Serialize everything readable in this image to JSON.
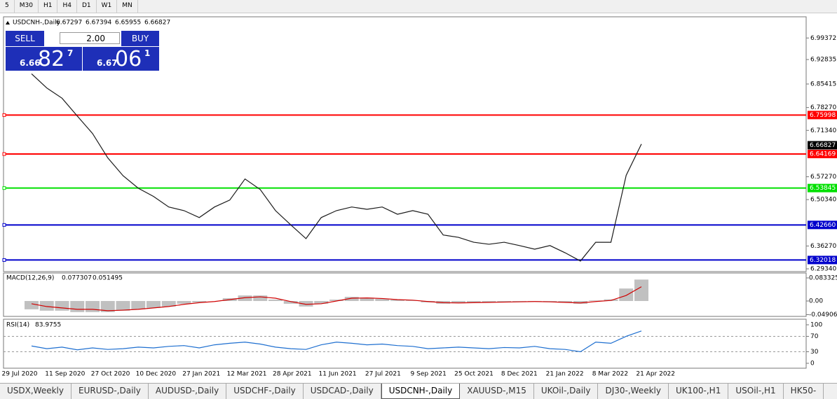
{
  "toolbar": {
    "timeframes": [
      "5",
      "M30",
      "H1",
      "H4",
      "D1",
      "W1",
      "MN"
    ]
  },
  "trade_panel": {
    "sell": "SELL",
    "buy": "BUY",
    "lot": "2.00",
    "sell_price": [
      "6.66",
      "82",
      "7"
    ],
    "buy_price": [
      "6.67",
      "06",
      "1"
    ]
  },
  "chart_data": {
    "type": "line",
    "symbol": "USDCNH-,Daily",
    "ohlc": [
      6.67297,
      6.67394,
      6.65955,
      6.66827
    ],
    "x_labels": [
      "29 Jul 2020",
      "11 Sep 2020",
      "27 Oct 2020",
      "10 Dec 2020",
      "27 Jan 2021",
      "12 Mar 2021",
      "28 Apr 2021",
      "11 Jun 2021",
      "27 Jul 2021",
      "9 Sep 2021",
      "25 Oct 2021",
      "8 Dec 2021",
      "21 Jan 2022",
      "8 Mar 2022",
      "21 Apr 2022"
    ],
    "series": [
      {
        "color": "#1a1a1a",
        "values": [
          6.885,
          6.842,
          6.811,
          6.757,
          6.704,
          6.63,
          6.576,
          6.538,
          6.513,
          6.481,
          6.47,
          6.449,
          6.481,
          6.502,
          6.566,
          6.534,
          6.47,
          6.427,
          6.385,
          6.449,
          6.47,
          6.481,
          6.474,
          6.481,
          6.459,
          6.47,
          6.459,
          6.396,
          6.389,
          6.374,
          6.368,
          6.374,
          6.364,
          6.353,
          6.364,
          6.342,
          6.317,
          6.374,
          6.374,
          6.577,
          6.672
        ]
      }
    ],
    "ylim": [
      6.285,
      7.058
    ],
    "yticks": [
      6.99372,
      6.92835,
      6.85415,
      {
        "value": 6.7827,
        "label": "6.78270"
      },
      {
        "value": 6.7134,
        "label": "6.71340"
      },
      {
        "value": 6.5727,
        "label": "6.57270"
      },
      {
        "value": 6.5034,
        "label": "6.50340"
      },
      {
        "value": 6.3627,
        "label": "6.36270"
      },
      {
        "value": 6.2934,
        "label": "6.29340"
      }
    ],
    "levels": [
      {
        "value": 6.75998,
        "color": "#ff0000"
      },
      {
        "value": 6.64169,
        "color": "#ff0000"
      },
      {
        "value": 6.53845,
        "color": "#00e000"
      },
      {
        "value": 6.4266,
        "label": "6.42660",
        "color": "#0000cc"
      },
      {
        "value": 6.32018,
        "color": "#0000cc"
      }
    ],
    "macd": {
      "title": "MACD(12,26,9)",
      "readout": [
        0.077307,
        0.051495
      ],
      "ylim": [
        -0.0556,
        0.101
      ],
      "yticks": [
        0.083325,
        {
          "value": 0,
          "label": "0.00"
        },
        -0.049068
      ],
      "histogram": [
        -0.03,
        -0.035,
        -0.035,
        -0.04,
        -0.04,
        -0.04,
        -0.035,
        -0.03,
        -0.025,
        -0.02,
        -0.01,
        -0.005,
        0.0,
        0.01,
        0.02,
        0.02,
        0.005,
        -0.01,
        -0.02,
        -0.01,
        0.005,
        0.015,
        0.012,
        0.008,
        0.004,
        0.002,
        -0.005,
        -0.01,
        -0.008,
        -0.006,
        -0.005,
        -0.004,
        -0.003,
        -0.002,
        -0.004,
        -0.006,
        -0.01,
        0.002,
        0.006,
        0.045,
        0.077307
      ],
      "signal": [
        -0.01,
        -0.02,
        -0.025,
        -0.03,
        -0.03,
        -0.035,
        -0.033,
        -0.03,
        -0.025,
        -0.02,
        -0.012,
        -0.006,
        -0.002,
        0.005,
        0.012,
        0.015,
        0.01,
        -0.002,
        -0.012,
        -0.01,
        0.0,
        0.01,
        0.011,
        0.009,
        0.005,
        0.003,
        -0.002,
        -0.006,
        -0.007,
        -0.006,
        -0.005,
        -0.004,
        -0.003,
        -0.002,
        -0.003,
        -0.005,
        -0.007,
        -0.002,
        0.002,
        0.02,
        0.051495
      ]
    },
    "rsi": {
      "title": "RSI(14)",
      "readout": 83.9755,
      "ylim": [
        -12.7,
        114.5
      ],
      "yticks": [
        100,
        70,
        30,
        0
      ],
      "levels": [
        70,
        30
      ],
      "values": [
        45,
        38,
        42,
        35,
        40,
        36,
        38,
        42,
        40,
        44,
        46,
        40,
        48,
        52,
        55,
        50,
        42,
        38,
        36,
        48,
        55,
        52,
        48,
        50,
        46,
        44,
        38,
        40,
        42,
        40,
        38,
        41,
        40,
        44,
        38,
        36,
        30,
        55,
        52,
        70,
        83.9755
      ]
    }
  },
  "tabs": {
    "items": [
      "USDX,Weekly",
      "EURUSD-,Daily",
      "AUDUSD-,Daily",
      "USDCHF-,Daily",
      "USDCAD-,Daily",
      "USDCNH-,Daily",
      "XAUUSD-,M15",
      "UKOil-,Daily",
      "DJ30-,Weekly",
      "UK100-,H1",
      "USOil-,H1",
      "HK50-"
    ],
    "active": 5
  }
}
